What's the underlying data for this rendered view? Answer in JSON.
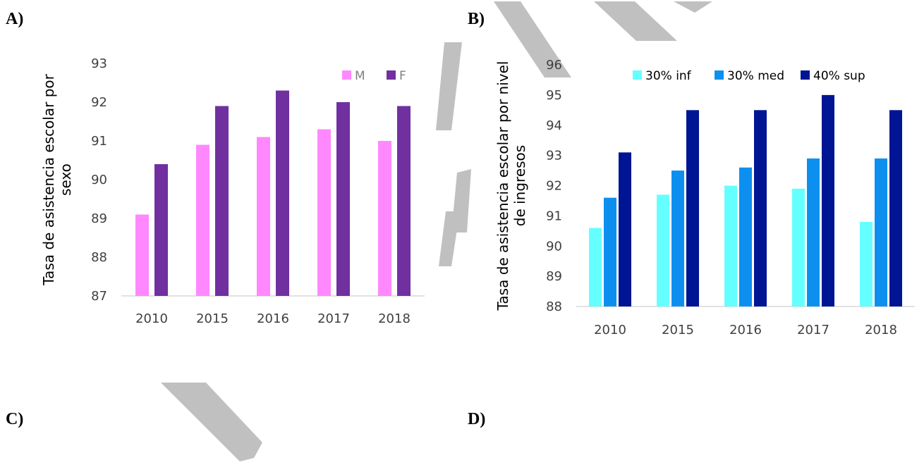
{
  "panels": {
    "a": "A)",
    "b": "B)",
    "c": "C)",
    "d": "D)"
  },
  "chart_data": [
    {
      "type": "bar",
      "title": "",
      "xlabel": "",
      "ylabel_lines": [
        "Tasa de asistencia escolar por",
        "sexo"
      ],
      "categories": [
        "2010",
        "2015",
        "2016",
        "2017",
        "2018"
      ],
      "series": [
        {
          "name": "M",
          "color": "#ff88ff",
          "values": [
            89.1,
            90.9,
            91.1,
            91.3,
            91.0
          ]
        },
        {
          "name": "F",
          "color": "#7030a0",
          "values": [
            90.4,
            91.9,
            92.3,
            92.0,
            91.9
          ]
        }
      ],
      "ylim": [
        87,
        93
      ],
      "yticks": [
        "87",
        "88",
        "89",
        "90",
        "91",
        "92",
        "93"
      ],
      "legend_text_color": "#808080",
      "legend": "top-right",
      "grid": false
    },
    {
      "type": "bar",
      "title": "",
      "xlabel": "",
      "ylabel_lines": [
        "Tasa de asistencia escolar por nivel",
        "de ingresos"
      ],
      "categories": [
        "2010",
        "2015",
        "2016",
        "2017",
        "2018"
      ],
      "series": [
        {
          "name": "30% inf",
          "color": "#66ffff",
          "values": [
            90.6,
            91.7,
            92.0,
            91.9,
            90.8
          ]
        },
        {
          "name": "30% med",
          "color": "#0d8ff0",
          "values": [
            91.6,
            92.5,
            92.6,
            92.9,
            92.9
          ]
        },
        {
          "name": "40% sup",
          "color": "#001593",
          "values": [
            93.1,
            94.5,
            94.5,
            95.0,
            94.5
          ]
        }
      ],
      "ylim": [
        88,
        96
      ],
      "yticks": [
        "88",
        "89",
        "90",
        "91",
        "92",
        "93",
        "94",
        "95",
        "96"
      ],
      "legend_text_color": "#000000",
      "legend": "top",
      "grid": false
    }
  ]
}
